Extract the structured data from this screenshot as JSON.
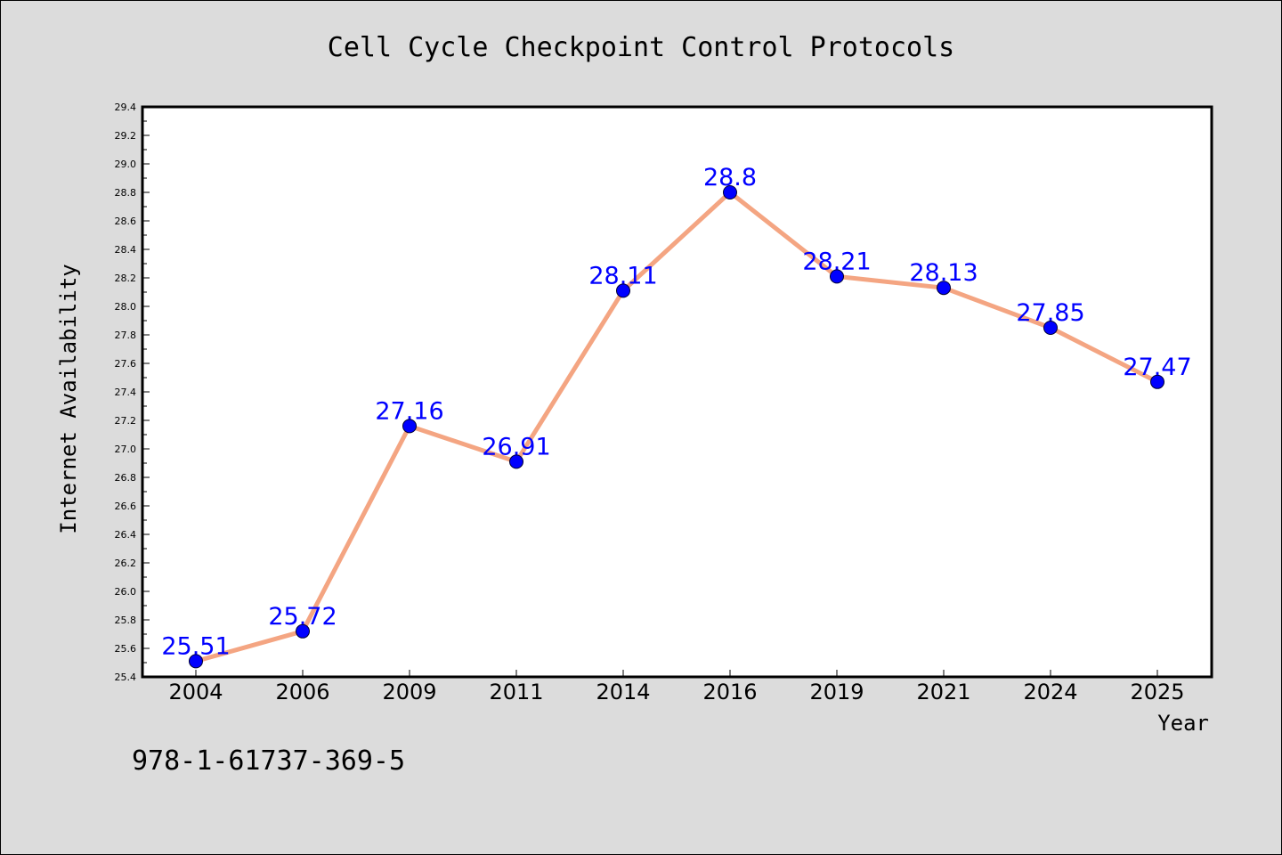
{
  "chart_data": {
    "type": "line",
    "title": "Cell Cycle Checkpoint Control Protocols",
    "xlabel": "Year",
    "ylabel": "Internet Availability",
    "categories": [
      "2004",
      "2006",
      "2009",
      "2011",
      "2014",
      "2016",
      "2019",
      "2021",
      "2024",
      "2025"
    ],
    "series": [
      {
        "values": [
          25.51,
          25.72,
          27.16,
          26.91,
          28.11,
          28.8,
          28.21,
          28.13,
          27.85,
          27.47
        ],
        "data_labels": [
          "25.51",
          "25.72",
          "27.16",
          "26.91",
          "28.11",
          "28.8",
          "28.21",
          "28.13",
          "27.85",
          "27.47"
        ]
      }
    ],
    "ylim": [
      25.4,
      29.4
    ],
    "yticks": [
      "25.4",
      "25.6",
      "25.8",
      "26.0",
      "26.2",
      "26.4",
      "26.6",
      "26.8",
      "27.0",
      "27.2",
      "27.4",
      "27.6",
      "27.8",
      "28.0",
      "28.2",
      "28.4",
      "28.6",
      "28.8",
      "29.0",
      "29.2",
      "29.4"
    ],
    "grid": false,
    "legend": "none",
    "colors": {
      "line": "#f4a582",
      "marker": "#0000ff",
      "data_label": "#0000ff",
      "plot_background": "#ffffff",
      "figure_background": "#dcdcdc"
    }
  },
  "footer": {
    "isbn": "978-1-61737-369-5"
  }
}
